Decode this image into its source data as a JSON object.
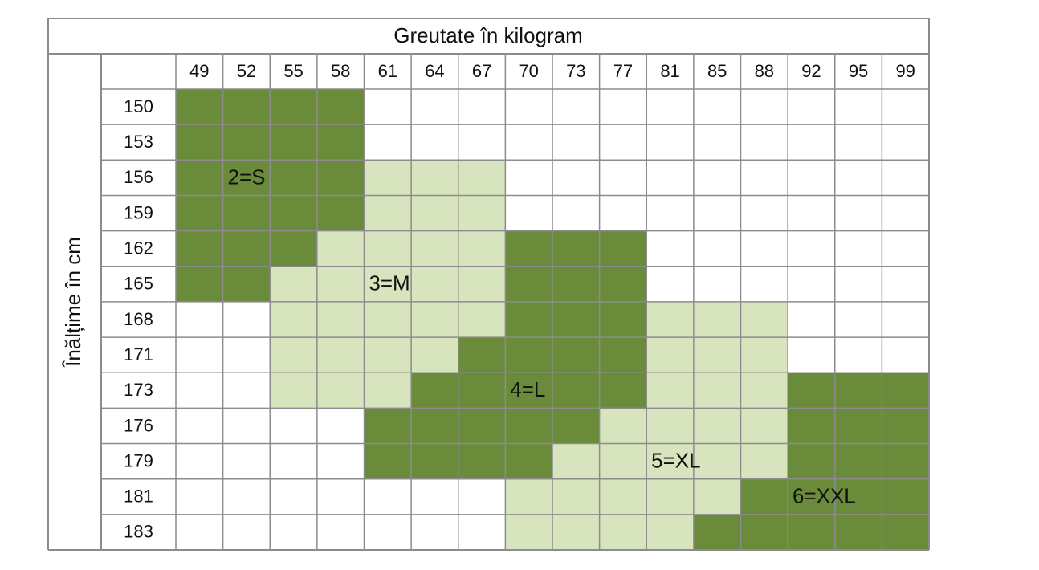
{
  "table": {
    "title": "Greutate în kilogram",
    "row_axis_label": "Înălțime în cm",
    "weights": [
      49,
      52,
      55,
      58,
      61,
      64,
      67,
      70,
      73,
      77,
      81,
      85,
      88,
      92,
      95,
      99
    ],
    "heights": [
      150,
      153,
      156,
      159,
      162,
      165,
      168,
      171,
      173,
      176,
      179,
      181,
      183
    ],
    "sizes": [
      {
        "code": 2,
        "label": "2=S",
        "color": "#6a8c3a"
      },
      {
        "code": 3,
        "label": "3=M",
        "color": "#d7e4bd"
      },
      {
        "code": 4,
        "label": "4=L",
        "color": "#6a8c3a"
      },
      {
        "code": 5,
        "label": "5=XL",
        "color": "#d7e4bd"
      },
      {
        "code": 6,
        "label": "6=XXL",
        "color": "#6a8c3a"
      }
    ],
    "cells": [
      [
        2,
        2,
        2,
        2,
        null,
        null,
        null,
        null,
        null,
        null,
        null,
        null,
        null,
        null,
        null,
        null
      ],
      [
        2,
        2,
        2,
        2,
        null,
        null,
        null,
        null,
        null,
        null,
        null,
        null,
        null,
        null,
        null,
        null
      ],
      [
        2,
        2,
        2,
        2,
        3,
        3,
        3,
        null,
        null,
        null,
        null,
        null,
        null,
        null,
        null,
        null
      ],
      [
        2,
        2,
        2,
        2,
        3,
        3,
        3,
        null,
        null,
        null,
        null,
        null,
        null,
        null,
        null,
        null
      ],
      [
        2,
        2,
        2,
        3,
        3,
        3,
        3,
        4,
        4,
        4,
        null,
        null,
        null,
        null,
        null,
        null
      ],
      [
        2,
        2,
        3,
        3,
        3,
        3,
        3,
        4,
        4,
        4,
        null,
        null,
        null,
        null,
        null,
        null
      ],
      [
        null,
        null,
        3,
        3,
        3,
        3,
        3,
        4,
        4,
        4,
        5,
        5,
        5,
        null,
        null,
        null
      ],
      [
        null,
        null,
        3,
        3,
        3,
        3,
        4,
        4,
        4,
        4,
        5,
        5,
        5,
        null,
        null,
        null
      ],
      [
        null,
        null,
        3,
        3,
        3,
        4,
        4,
        4,
        4,
        4,
        5,
        5,
        5,
        6,
        6,
        6
      ],
      [
        null,
        null,
        null,
        null,
        4,
        4,
        4,
        4,
        4,
        5,
        5,
        5,
        5,
        6,
        6,
        6
      ],
      [
        null,
        null,
        null,
        null,
        4,
        4,
        4,
        4,
        5,
        5,
        5,
        5,
        5,
        6,
        6,
        6
      ],
      [
        null,
        null,
        null,
        null,
        null,
        null,
        null,
        5,
        5,
        5,
        5,
        5,
        6,
        6,
        6,
        6
      ],
      [
        null,
        null,
        null,
        null,
        null,
        null,
        null,
        5,
        5,
        5,
        5,
        6,
        6,
        6,
        6,
        6
      ]
    ]
  }
}
